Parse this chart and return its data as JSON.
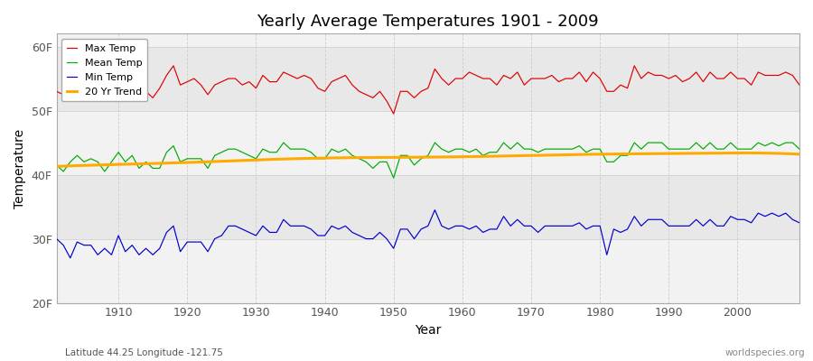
{
  "title": "Yearly Average Temperatures 1901 - 2009",
  "xlabel": "Year",
  "ylabel": "Temperature",
  "footnote_left": "Latitude 44.25 Longitude -121.75",
  "footnote_right": "worldspecies.org",
  "ylim": [
    20,
    62
  ],
  "yticks": [
    20,
    30,
    40,
    50,
    60
  ],
  "ytick_labels": [
    "20F",
    "30F",
    "40F",
    "50F",
    "60F"
  ],
  "xlim": [
    1901,
    2009
  ],
  "xticks": [
    1910,
    1920,
    1930,
    1940,
    1950,
    1960,
    1970,
    1980,
    1990,
    2000
  ],
  "plot_bg": "#e8e8e8",
  "fig_bg": "#ffffff",
  "stripe_color": "#d8d8d8",
  "legend_labels": [
    "Max Temp",
    "Mean Temp",
    "Min Temp",
    "20 Yr Trend"
  ],
  "legend_colors": [
    "#dd0000",
    "#00aa00",
    "#0000cc",
    "#ffaa00"
  ],
  "max_temps": [
    53.0,
    52.5,
    51.5,
    53.5,
    53.0,
    54.0,
    53.5,
    53.0,
    53.5,
    54.5,
    54.0,
    54.5,
    52.0,
    53.0,
    52.0,
    53.5,
    55.5,
    57.0,
    54.0,
    54.5,
    55.0,
    54.0,
    52.5,
    54.0,
    54.5,
    55.0,
    55.0,
    54.0,
    54.5,
    53.5,
    55.5,
    54.5,
    54.5,
    56.0,
    55.5,
    55.0,
    55.5,
    55.0,
    53.5,
    53.0,
    54.5,
    55.0,
    55.5,
    54.0,
    53.0,
    52.5,
    52.0,
    53.0,
    51.5,
    49.5,
    53.0,
    53.0,
    52.0,
    53.0,
    53.5,
    56.5,
    55.0,
    54.0,
    55.0,
    55.0,
    56.0,
    55.5,
    55.0,
    55.0,
    54.0,
    55.5,
    55.0,
    56.0,
    54.0,
    55.0,
    55.0,
    55.0,
    55.5,
    54.5,
    55.0,
    55.0,
    56.0,
    54.5,
    56.0,
    55.0,
    53.0,
    53.0,
    54.0,
    53.5,
    57.0,
    55.0,
    56.0,
    55.5,
    55.5,
    55.0,
    55.5,
    54.5,
    55.0,
    56.0,
    54.5,
    56.0,
    55.0,
    55.0,
    56.0,
    55.0,
    55.0,
    54.0,
    56.0,
    55.5,
    55.5,
    55.5,
    56.0,
    55.5,
    54.0
  ],
  "mean_temps": [
    41.5,
    40.5,
    42.0,
    43.0,
    42.0,
    42.5,
    42.0,
    40.5,
    42.0,
    43.5,
    42.0,
    43.0,
    41.0,
    42.0,
    41.0,
    41.0,
    43.5,
    44.5,
    42.0,
    42.5,
    42.5,
    42.5,
    41.0,
    43.0,
    43.5,
    44.0,
    44.0,
    43.5,
    43.0,
    42.5,
    44.0,
    43.5,
    43.5,
    45.0,
    44.0,
    44.0,
    44.0,
    43.5,
    42.5,
    42.5,
    44.0,
    43.5,
    44.0,
    43.0,
    42.5,
    42.0,
    41.0,
    42.0,
    42.0,
    39.5,
    43.0,
    43.0,
    41.5,
    42.5,
    43.0,
    45.0,
    44.0,
    43.5,
    44.0,
    44.0,
    43.5,
    44.0,
    43.0,
    43.5,
    43.5,
    45.0,
    44.0,
    45.0,
    44.0,
    44.0,
    43.5,
    44.0,
    44.0,
    44.0,
    44.0,
    44.0,
    44.5,
    43.5,
    44.0,
    44.0,
    42.0,
    42.0,
    43.0,
    43.0,
    45.0,
    44.0,
    45.0,
    45.0,
    45.0,
    44.0,
    44.0,
    44.0,
    44.0,
    45.0,
    44.0,
    45.0,
    44.0,
    44.0,
    45.0,
    44.0,
    44.0,
    44.0,
    45.0,
    44.5,
    45.0,
    44.5,
    45.0,
    45.0,
    44.0
  ],
  "min_temps": [
    30.0,
    29.0,
    27.0,
    29.5,
    29.0,
    29.0,
    27.5,
    28.5,
    27.5,
    30.5,
    28.0,
    29.0,
    27.5,
    28.5,
    27.5,
    28.5,
    31.0,
    32.0,
    28.0,
    29.5,
    29.5,
    29.5,
    28.0,
    30.0,
    30.5,
    32.0,
    32.0,
    31.5,
    31.0,
    30.5,
    32.0,
    31.0,
    31.0,
    33.0,
    32.0,
    32.0,
    32.0,
    31.5,
    30.5,
    30.5,
    32.0,
    31.5,
    32.0,
    31.0,
    30.5,
    30.0,
    30.0,
    31.0,
    30.0,
    28.5,
    31.5,
    31.5,
    30.0,
    31.5,
    32.0,
    34.5,
    32.0,
    31.5,
    32.0,
    32.0,
    31.5,
    32.0,
    31.0,
    31.5,
    31.5,
    33.5,
    32.0,
    33.0,
    32.0,
    32.0,
    31.0,
    32.0,
    32.0,
    32.0,
    32.0,
    32.0,
    32.5,
    31.5,
    32.0,
    32.0,
    27.5,
    31.5,
    31.0,
    31.5,
    33.5,
    32.0,
    33.0,
    33.0,
    33.0,
    32.0,
    32.0,
    32.0,
    32.0,
    33.0,
    32.0,
    33.0,
    32.0,
    32.0,
    33.5,
    33.0,
    33.0,
    32.5,
    34.0,
    33.5,
    34.0,
    33.5,
    34.0,
    33.0,
    32.5
  ],
  "trend_years": [
    1901,
    1910,
    1920,
    1930,
    1940,
    1950,
    1960,
    1970,
    1980,
    1990,
    2000,
    2009
  ],
  "trend_vals": [
    41.3,
    41.6,
    41.9,
    42.3,
    42.6,
    42.7,
    42.8,
    43.0,
    43.2,
    43.3,
    43.4,
    43.2
  ]
}
